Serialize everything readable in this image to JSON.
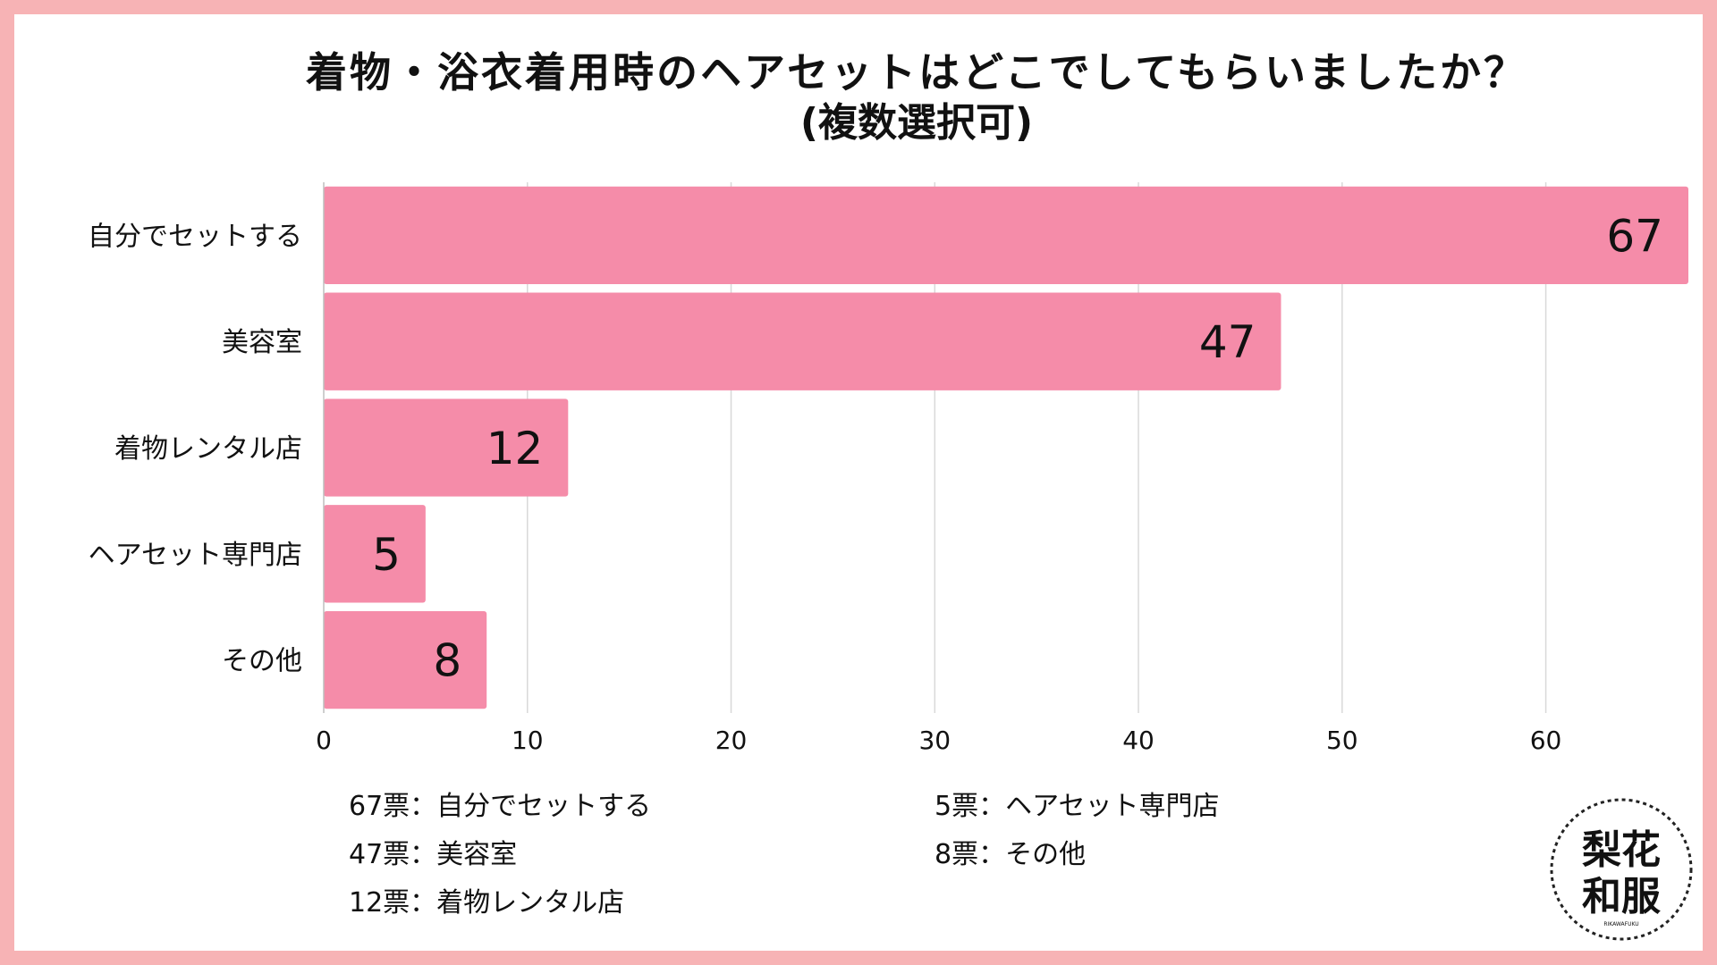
{
  "title": {
    "line1": "着物・浴衣着用時のヘアセットはどこでしてもらいましたか？",
    "line2": "(複数選択可)"
  },
  "chart_data": {
    "type": "bar",
    "orientation": "horizontal",
    "categories": [
      "自分でセットする",
      "美容室",
      "着物レンタル店",
      "ヘアセット専門店",
      "その他"
    ],
    "values": [
      67,
      47,
      12,
      5,
      8
    ],
    "xlim": [
      0,
      67
    ],
    "xticks": [
      0,
      10,
      20,
      30,
      40,
      50,
      60
    ],
    "grid": true,
    "bar_color": "#f58ca9",
    "xlabel": "",
    "ylabel": ""
  },
  "legend": {
    "left": [
      "67票：自分でセットする",
      "47票：美容室",
      "12票：着物レンタル店"
    ],
    "right": [
      "5票：ヘアセット専門店",
      "8票：その他"
    ]
  },
  "logo": {
    "top": "梨花",
    "bottom": "和服",
    "caption": "RIKAWAFUKU"
  },
  "colors": {
    "border": "#f7b3b5",
    "bar": "#f58ca9",
    "grid": "#d9d9d9"
  }
}
